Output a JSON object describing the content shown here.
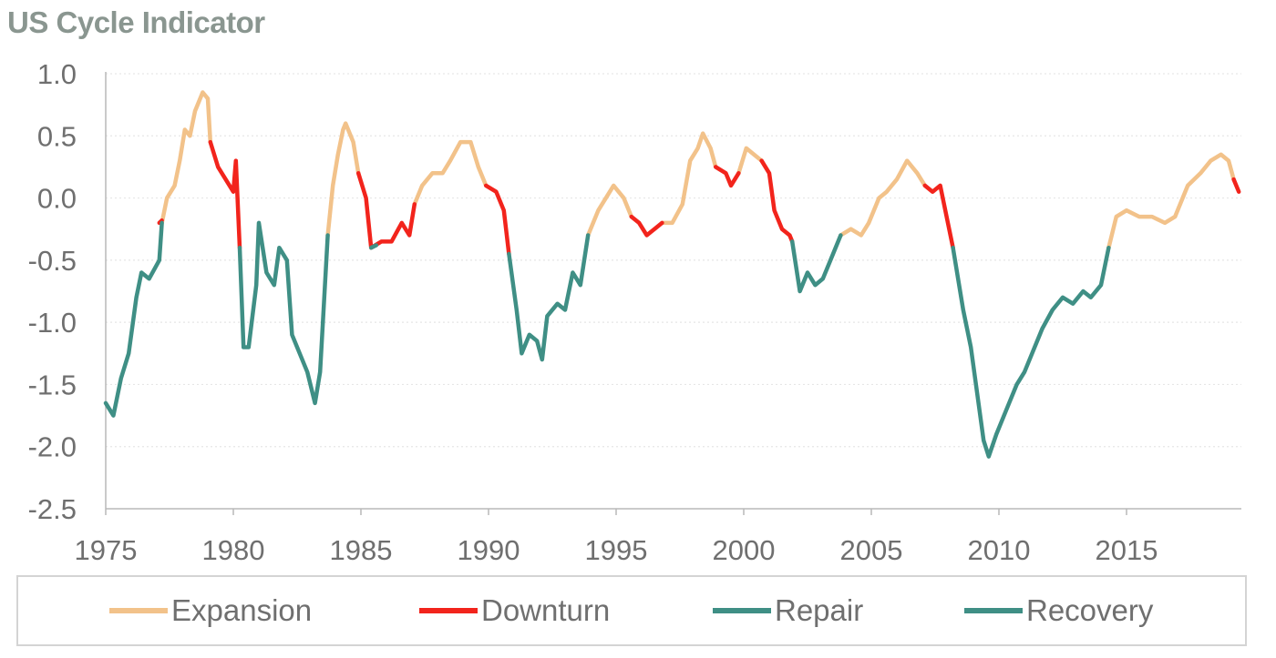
{
  "chart_data": {
    "type": "line",
    "title": "US Cycle Indicator",
    "xlabel": "",
    "ylabel": "",
    "xlim": [
      1975,
      2019.5
    ],
    "ylim": [
      -2.5,
      1.0
    ],
    "x_ticks": [
      "1975",
      "1980",
      "1985",
      "1990",
      "1995",
      "2000",
      "2005",
      "2010",
      "2015"
    ],
    "y_ticks": [
      "1.0",
      "0.5",
      "0.0",
      "-0.5",
      "-1.0",
      "-1.5",
      "-2.0",
      "-2.5"
    ],
    "grid": "horizontal",
    "legend_position": "bottom",
    "colors": {
      "Expansion": "#f2c28a",
      "Downturn": "#f2241c",
      "Repair": "#3f8f85",
      "Recovery": "#3f8f85",
      "axis": "#b8b8b8",
      "grid": "#e6e6e6"
    },
    "series": [
      {
        "name": "Expansion",
        "segments": [
          [
            [
              1977.2,
              -0.2
            ],
            [
              1977.4,
              0.0
            ],
            [
              1977.7,
              0.1
            ],
            [
              1977.9,
              0.3
            ],
            [
              1978.1,
              0.55
            ],
            [
              1978.3,
              0.5
            ],
            [
              1978.5,
              0.7
            ],
            [
              1978.8,
              0.85
            ],
            [
              1979.0,
              0.8
            ],
            [
              1979.1,
              0.45
            ]
          ],
          [
            [
              1983.7,
              -0.3
            ],
            [
              1983.9,
              0.1
            ],
            [
              1984.1,
              0.35
            ],
            [
              1984.3,
              0.55
            ],
            [
              1984.4,
              0.6
            ],
            [
              1984.7,
              0.45
            ],
            [
              1984.9,
              0.2
            ]
          ],
          [
            [
              1987.1,
              -0.05
            ],
            [
              1987.4,
              0.1
            ],
            [
              1987.8,
              0.2
            ],
            [
              1988.2,
              0.2
            ],
            [
              1988.5,
              0.3
            ],
            [
              1988.9,
              0.45
            ],
            [
              1989.3,
              0.45
            ],
            [
              1989.6,
              0.25
            ],
            [
              1989.9,
              0.1
            ]
          ],
          [
            [
              1993.9,
              -0.3
            ],
            [
              1994.3,
              -0.1
            ],
            [
              1994.6,
              0.0
            ],
            [
              1994.9,
              0.1
            ],
            [
              1995.3,
              0.0
            ],
            [
              1995.6,
              -0.15
            ]
          ],
          [
            [
              1996.8,
              -0.2
            ],
            [
              1997.2,
              -0.2
            ],
            [
              1997.6,
              -0.05
            ],
            [
              1997.9,
              0.3
            ],
            [
              1998.2,
              0.4
            ],
            [
              1998.4,
              0.52
            ],
            [
              1998.7,
              0.4
            ],
            [
              1998.9,
              0.25
            ]
          ],
          [
            [
              1999.8,
              0.2
            ],
            [
              2000.1,
              0.4
            ],
            [
              2000.4,
              0.35
            ],
            [
              2000.7,
              0.3
            ]
          ],
          [
            [
              2003.8,
              -0.3
            ],
            [
              2004.2,
              -0.25
            ],
            [
              2004.6,
              -0.3
            ],
            [
              2004.9,
              -0.2
            ],
            [
              2005.3,
              0.0
            ],
            [
              2005.6,
              0.05
            ],
            [
              2006.0,
              0.15
            ],
            [
              2006.4,
              0.3
            ],
            [
              2006.8,
              0.2
            ],
            [
              2007.1,
              0.1
            ]
          ],
          [
            [
              2014.3,
              -0.4
            ],
            [
              2014.6,
              -0.15
            ],
            [
              2015.0,
              -0.1
            ],
            [
              2015.5,
              -0.15
            ],
            [
              2016.0,
              -0.15
            ],
            [
              2016.5,
              -0.2
            ],
            [
              2016.9,
              -0.15
            ],
            [
              2017.4,
              0.1
            ],
            [
              2017.9,
              0.2
            ],
            [
              2018.3,
              0.3
            ],
            [
              2018.7,
              0.35
            ],
            [
              2019.0,
              0.3
            ],
            [
              2019.2,
              0.15
            ]
          ]
        ]
      },
      {
        "name": "Downturn",
        "segments": [
          [
            [
              1977.1,
              -0.2
            ],
            [
              1977.2,
              -0.18
            ]
          ],
          [
            [
              1979.1,
              0.45
            ],
            [
              1979.4,
              0.25
            ],
            [
              1979.7,
              0.15
            ],
            [
              1980.0,
              0.05
            ],
            [
              1980.1,
              0.3
            ],
            [
              1980.25,
              -0.4
            ]
          ],
          [
            [
              1984.9,
              0.2
            ],
            [
              1985.2,
              0.0
            ],
            [
              1985.4,
              -0.4
            ],
            [
              1985.8,
              -0.35
            ],
            [
              1986.2,
              -0.35
            ],
            [
              1986.6,
              -0.2
            ],
            [
              1986.9,
              -0.3
            ],
            [
              1987.1,
              -0.05
            ]
          ],
          [
            [
              1989.9,
              0.1
            ],
            [
              1990.3,
              0.05
            ],
            [
              1990.6,
              -0.1
            ],
            [
              1990.8,
              -0.45
            ]
          ],
          [
            [
              1995.6,
              -0.15
            ],
            [
              1995.9,
              -0.2
            ],
            [
              1996.2,
              -0.3
            ],
            [
              1996.5,
              -0.25
            ],
            [
              1996.8,
              -0.2
            ]
          ],
          [
            [
              1998.9,
              0.25
            ],
            [
              1999.3,
              0.2
            ],
            [
              1999.5,
              0.1
            ],
            [
              1999.8,
              0.2
            ]
          ],
          [
            [
              2000.7,
              0.3
            ],
            [
              2001.0,
              0.2
            ],
            [
              2001.2,
              -0.1
            ],
            [
              2001.5,
              -0.25
            ],
            [
              2001.8,
              -0.3
            ],
            [
              2001.9,
              -0.35
            ]
          ],
          [
            [
              2007.1,
              0.1
            ],
            [
              2007.4,
              0.05
            ],
            [
              2007.7,
              0.1
            ],
            [
              2008.0,
              -0.2
            ],
            [
              2008.2,
              -0.4
            ]
          ],
          [
            [
              2019.2,
              0.15
            ],
            [
              2019.4,
              0.05
            ]
          ]
        ]
      },
      {
        "name": "Repair",
        "segments": [
          [
            [
              1980.25,
              -0.4
            ],
            [
              1980.4,
              -1.2
            ],
            [
              1980.6,
              -1.2
            ],
            [
              1980.9,
              -0.7
            ],
            [
              1981.0,
              -0.2
            ],
            [
              1981.3,
              -0.6
            ],
            [
              1981.6,
              -0.7
            ],
            [
              1981.8,
              -0.4
            ],
            [
              1982.1,
              -0.5
            ],
            [
              1982.3,
              -1.1
            ],
            [
              1982.6,
              -1.25
            ],
            [
              1982.9,
              -1.4
            ],
            [
              1983.2,
              -1.65
            ],
            [
              1983.4,
              -1.4
            ],
            [
              1983.7,
              -0.3
            ]
          ],
          [
            [
              1990.8,
              -0.45
            ],
            [
              1991.1,
              -0.9
            ],
            [
              1991.3,
              -1.25
            ],
            [
              1991.6,
              -1.1
            ],
            [
              1991.9,
              -1.15
            ],
            [
              1992.1,
              -1.3
            ],
            [
              1992.3,
              -0.95
            ],
            [
              1992.7,
              -0.85
            ],
            [
              1993.0,
              -0.9
            ],
            [
              1993.3,
              -0.6
            ],
            [
              1993.6,
              -0.7
            ],
            [
              1993.9,
              -0.3
            ]
          ],
          [
            [
              2001.9,
              -0.35
            ],
            [
              2002.2,
              -0.75
            ],
            [
              2002.5,
              -0.6
            ],
            [
              2002.8,
              -0.7
            ],
            [
              2003.1,
              -0.65
            ],
            [
              2003.4,
              -0.5
            ],
            [
              2003.8,
              -0.3
            ]
          ],
          [
            [
              2008.2,
              -0.4
            ],
            [
              2008.6,
              -0.9
            ],
            [
              2008.9,
              -1.2
            ],
            [
              2009.2,
              -1.65
            ],
            [
              2009.4,
              -1.95
            ],
            [
              2009.6,
              -2.08
            ],
            [
              2009.9,
              -1.9
            ],
            [
              2010.3,
              -1.7
            ],
            [
              2010.7,
              -1.5
            ],
            [
              2011.0,
              -1.4
            ],
            [
              2011.3,
              -1.25
            ],
            [
              2011.7,
              -1.05
            ],
            [
              2012.1,
              -0.9
            ],
            [
              2012.5,
              -0.8
            ],
            [
              2012.9,
              -0.85
            ],
            [
              2013.3,
              -0.75
            ],
            [
              2013.6,
              -0.8
            ],
            [
              2014.0,
              -0.7
            ],
            [
              2014.3,
              -0.4
            ]
          ]
        ]
      },
      {
        "name": "Recovery",
        "segments": [
          [
            [
              1975.0,
              -1.65
            ],
            [
              1975.3,
              -1.75
            ],
            [
              1975.6,
              -1.45
            ],
            [
              1975.9,
              -1.25
            ],
            [
              1976.2,
              -0.8
            ],
            [
              1976.4,
              -0.6
            ],
            [
              1976.7,
              -0.65
            ],
            [
              1977.1,
              -0.5
            ],
            [
              1977.2,
              -0.2
            ]
          ],
          [
            [
              1985.4,
              -0.4
            ],
            [
              1985.6,
              -0.38
            ]
          ]
        ]
      }
    ]
  },
  "legend": {
    "items": [
      {
        "label": "Expansion",
        "color": "#f2c28a"
      },
      {
        "label": "Downturn",
        "color": "#f2241c"
      },
      {
        "label": "Repair",
        "color": "#3f8f85"
      },
      {
        "label": "Recovery",
        "color": "#3f8f85"
      }
    ]
  }
}
